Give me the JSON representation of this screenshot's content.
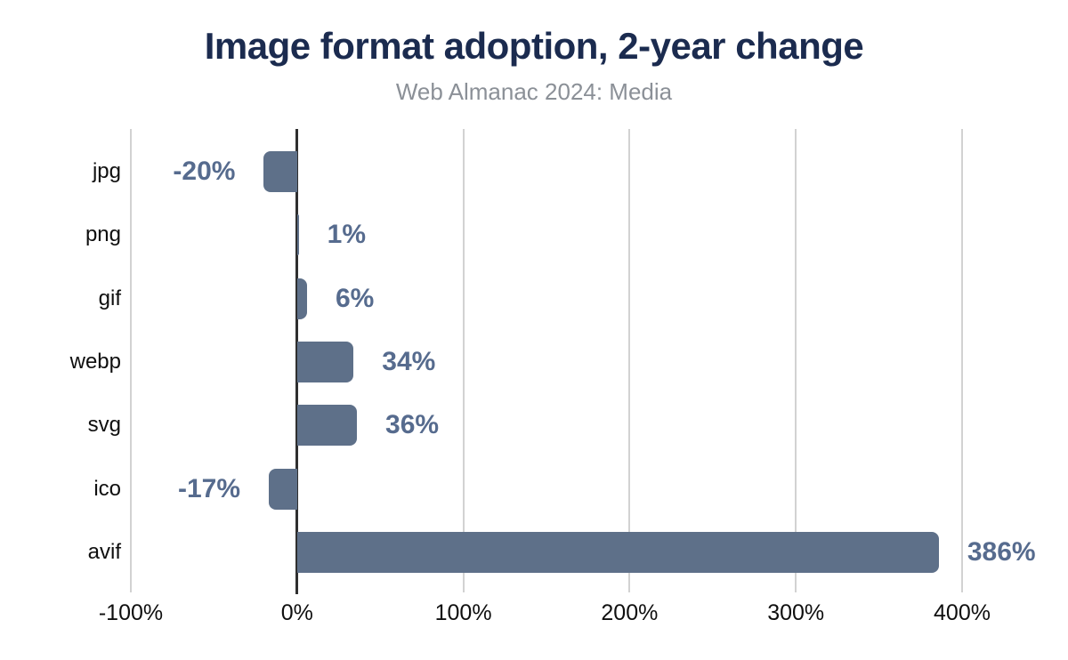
{
  "header": {
    "title": "Image format adoption, 2-year change",
    "subtitle": "Web Almanac 2024: Media"
  },
  "chart_data": {
    "type": "bar",
    "orientation": "horizontal",
    "title": "Image format adoption, 2-year change",
    "subtitle": "Web Almanac 2024: Media",
    "categories": [
      "jpg",
      "png",
      "gif",
      "webp",
      "svg",
      "ico",
      "avif"
    ],
    "values": [
      -20,
      1,
      6,
      34,
      36,
      -17,
      386
    ],
    "value_labels": [
      "-20%",
      "1%",
      "6%",
      "34%",
      "36%",
      "-17%",
      "386%"
    ],
    "xlabel": "",
    "ylabel": "",
    "xlim": [
      -100,
      400
    ],
    "x_ticks": [
      {
        "value": -100,
        "label": "-100%"
      },
      {
        "value": 0,
        "label": "0%"
      },
      {
        "value": 100,
        "label": "100%"
      },
      {
        "value": 200,
        "label": "200%"
      },
      {
        "value": 300,
        "label": "300%"
      },
      {
        "value": 400,
        "label": "400%"
      }
    ],
    "grid": "vertical-only",
    "legend": "none",
    "colors": {
      "bar": "#5e7089",
      "value_label": "#566b8e",
      "title": "#1b2b4f",
      "subtitle": "#8b9097",
      "grid": "#d2d2d2",
      "zero_axis": "#2f2f2f",
      "tick_label": "#0f0f0f",
      "background": "#ffffff"
    }
  }
}
